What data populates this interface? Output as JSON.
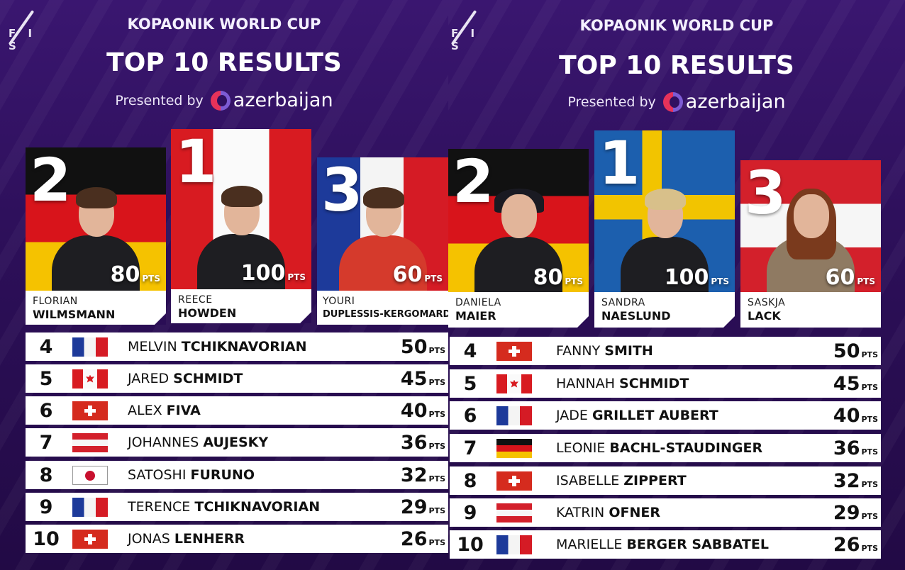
{
  "panels": [
    {
      "event_title": "KOPAONIK WORLD CUP",
      "main_title": "TOP 10 RESULTS",
      "presented_by": "Presented by",
      "sponsor": "azerbaijan",
      "fis_logo": "F I S",
      "podium": [
        {
          "rank": "2",
          "first": "FLORIAN",
          "last": "WILMSMANN",
          "points": "80",
          "unit": "PTS",
          "flag": "de"
        },
        {
          "rank": "1",
          "first": "REECE",
          "last": "HOWDEN",
          "points": "100",
          "unit": "PTS",
          "flag": "ca"
        },
        {
          "rank": "3",
          "first": "YOURI",
          "last": "DUPLESSIS-KERGOMARD",
          "points": "60",
          "unit": "PTS",
          "flag": "fr"
        }
      ],
      "results": [
        {
          "pos": "4",
          "first": "MELVIN",
          "last": "TCHIKNAVORIAN",
          "points": "50",
          "unit": "PTS",
          "flag": "fr"
        },
        {
          "pos": "5",
          "first": "JARED",
          "last": "SCHMIDT",
          "points": "45",
          "unit": "PTS",
          "flag": "ca"
        },
        {
          "pos": "6",
          "first": "ALEX",
          "last": "FIVA",
          "points": "40",
          "unit": "PTS",
          "flag": "ch"
        },
        {
          "pos": "7",
          "first": "JOHANNES",
          "last": "AUJESKY",
          "points": "36",
          "unit": "PTS",
          "flag": "at"
        },
        {
          "pos": "8",
          "first": "SATOSHI",
          "last": "FURUNO",
          "points": "32",
          "unit": "PTS",
          "flag": "jp"
        },
        {
          "pos": "9",
          "first": "TERENCE",
          "last": "TCHIKNAVORIAN",
          "points": "29",
          "unit": "PTS",
          "flag": "fr"
        },
        {
          "pos": "10",
          "first": "JONAS",
          "last": "LENHERR",
          "points": "26",
          "unit": "PTS",
          "flag": "ch"
        }
      ]
    },
    {
      "event_title": "KOPAONIK WORLD CUP",
      "main_title": "TOP 10 RESULTS",
      "presented_by": "Presented by",
      "sponsor": "azerbaijan",
      "fis_logo": "F I S",
      "podium": [
        {
          "rank": "2",
          "first": "DANIELA",
          "last": "MAIER",
          "points": "80",
          "unit": "PTS",
          "flag": "de"
        },
        {
          "rank": "1",
          "first": "SANDRA",
          "last": "NAESLUND",
          "points": "100",
          "unit": "PTS",
          "flag": "se"
        },
        {
          "rank": "3",
          "first": "SASKJA",
          "last": "LACK",
          "points": "60",
          "unit": "PTS",
          "flag": "at"
        }
      ],
      "results": [
        {
          "pos": "4",
          "first": "FANNY",
          "last": "SMITH",
          "points": "50",
          "unit": "PTS",
          "flag": "ch"
        },
        {
          "pos": "5",
          "first": "HANNAH",
          "last": "SCHMIDT",
          "points": "45",
          "unit": "PTS",
          "flag": "ca"
        },
        {
          "pos": "6",
          "first": "JADE",
          "last": "GRILLET AUBERT",
          "points": "40",
          "unit": "PTS",
          "flag": "fr"
        },
        {
          "pos": "7",
          "first": "LEONIE",
          "last": "BACHL-STAUDINGER",
          "points": "36",
          "unit": "PTS",
          "flag": "de"
        },
        {
          "pos": "8",
          "first": "ISABELLE",
          "last": "ZIPPERT",
          "points": "32",
          "unit": "PTS",
          "flag": "ch"
        },
        {
          "pos": "9",
          "first": "KATRIN",
          "last": "OFNER",
          "points": "29",
          "unit": "PTS",
          "flag": "at"
        },
        {
          "pos": "10",
          "first": "MARIELLE",
          "last": "BERGER SABBATEL",
          "points": "26",
          "unit": "PTS",
          "flag": "fr"
        }
      ]
    }
  ]
}
